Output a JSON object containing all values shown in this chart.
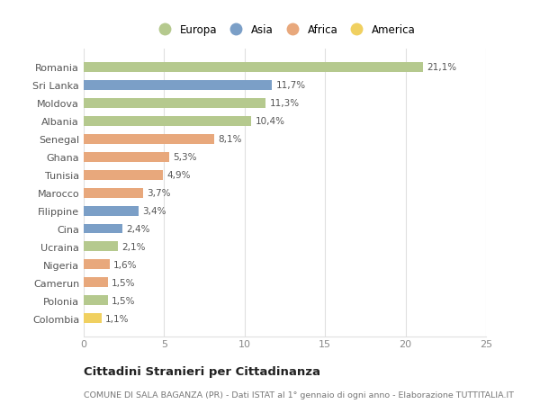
{
  "categories": [
    "Romania",
    "Sri Lanka",
    "Moldova",
    "Albania",
    "Senegal",
    "Ghana",
    "Tunisia",
    "Marocco",
    "Filippine",
    "Cina",
    "Ucraina",
    "Nigeria",
    "Camerun",
    "Polonia",
    "Colombia"
  ],
  "values": [
    21.1,
    11.7,
    11.3,
    10.4,
    8.1,
    5.3,
    4.9,
    3.7,
    3.4,
    2.4,
    2.1,
    1.6,
    1.5,
    1.5,
    1.1
  ],
  "labels": [
    "21,1%",
    "11,7%",
    "11,3%",
    "10,4%",
    "8,1%",
    "5,3%",
    "4,9%",
    "3,7%",
    "3,4%",
    "2,4%",
    "2,1%",
    "1,6%",
    "1,5%",
    "1,5%",
    "1,1%"
  ],
  "continents": [
    "Europa",
    "Asia",
    "Europa",
    "Europa",
    "Africa",
    "Africa",
    "Africa",
    "Africa",
    "Asia",
    "Asia",
    "Europa",
    "Africa",
    "Africa",
    "Europa",
    "America"
  ],
  "colors": {
    "Europa": "#b5c98e",
    "Asia": "#7b9fc7",
    "Africa": "#e8a87c",
    "America": "#f0d060"
  },
  "legend_order": [
    "Europa",
    "Asia",
    "Africa",
    "America"
  ],
  "title": "Cittadini Stranieri per Cittadinanza",
  "subtitle": "COMUNE DI SALA BAGANZA (PR) - Dati ISTAT al 1° gennaio di ogni anno - Elaborazione TUTTITALIA.IT",
  "xlim": [
    0,
    25
  ],
  "xticks": [
    0,
    5,
    10,
    15,
    20,
    25
  ],
  "background_color": "#ffffff",
  "grid_color": "#e0e0e0",
  "bar_height": 0.55,
  "label_fontsize": 7.5,
  "ytick_fontsize": 8,
  "xtick_fontsize": 8,
  "title_fontsize": 9.5,
  "subtitle_fontsize": 6.8
}
